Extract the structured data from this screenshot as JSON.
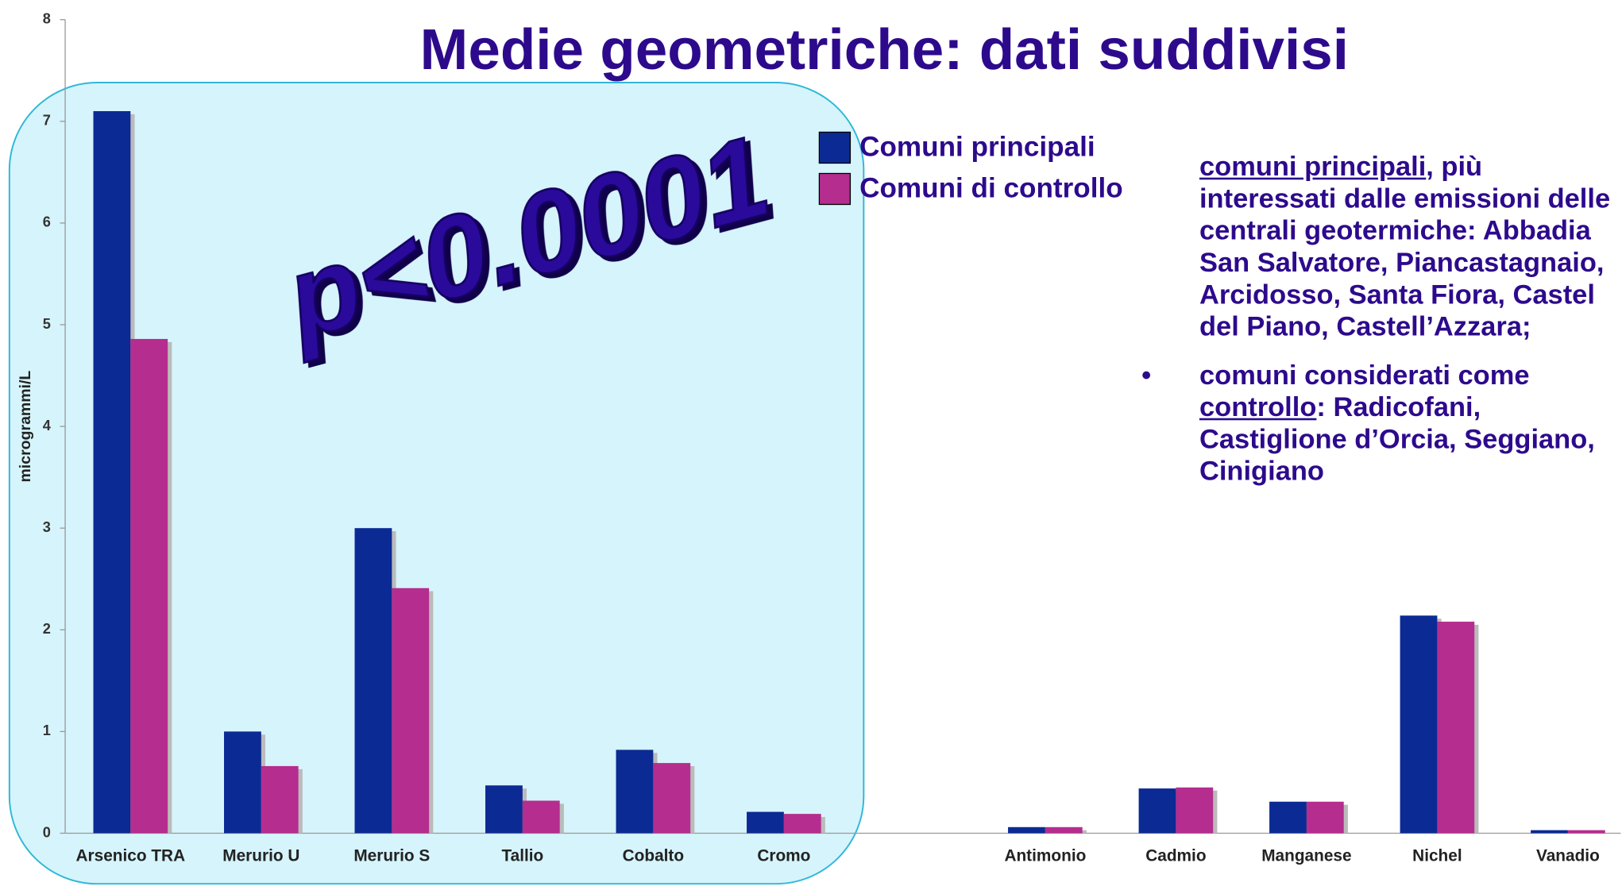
{
  "chart_data": {
    "type": "bar",
    "title": "Medie geometriche: dati suddivisi",
    "y_label": "microgrammi/L",
    "annotation": "p<0.0001",
    "categories": [
      "Arsenico TRA",
      "Merurio U",
      "Merurio S",
      "Tallio",
      "Cobalto",
      "Cromo",
      null,
      "Antimonio",
      "Cadmio",
      "Manganese",
      "Nichel",
      "Vanadio"
    ],
    "series": [
      {
        "name": "Comuni principali",
        "color": "#0b2a94",
        "values": [
          7.1,
          1.0,
          3.0,
          0.47,
          0.82,
          0.21,
          null,
          0.06,
          0.44,
          0.31,
          2.14,
          0.03
        ]
      },
      {
        "name": "Comuni di controllo",
        "color": "#b52d8e",
        "values": [
          4.86,
          0.66,
          2.41,
          0.32,
          0.69,
          0.19,
          null,
          0.06,
          0.45,
          0.31,
          2.08,
          0.03
        ]
      }
    ],
    "ylim": [
      0,
      8
    ],
    "yticks": [
      0,
      1,
      2,
      3,
      4,
      5,
      6,
      7,
      8
    ],
    "grid": false,
    "legend": "top",
    "notes": [
      {
        "parts": [
          {
            "text": "comuni principali",
            "underline": true
          },
          {
            "text": ", più interessati dalle emissioni delle centrali geotermiche: Abbadia San Salvatore, Piancastagnaio, Arcidosso, Santa Fiora, Castel del Piano, Castell’Azzara;"
          }
        ]
      },
      {
        "bullet": "•",
        "parts": [
          {
            "text": "comuni considerati come "
          },
          {
            "text": "controllo",
            "underline": true
          },
          {
            "text": ": Radicofani, Castiglione d’Orcia, Seggiano, Cinigiano"
          }
        ]
      }
    ]
  }
}
